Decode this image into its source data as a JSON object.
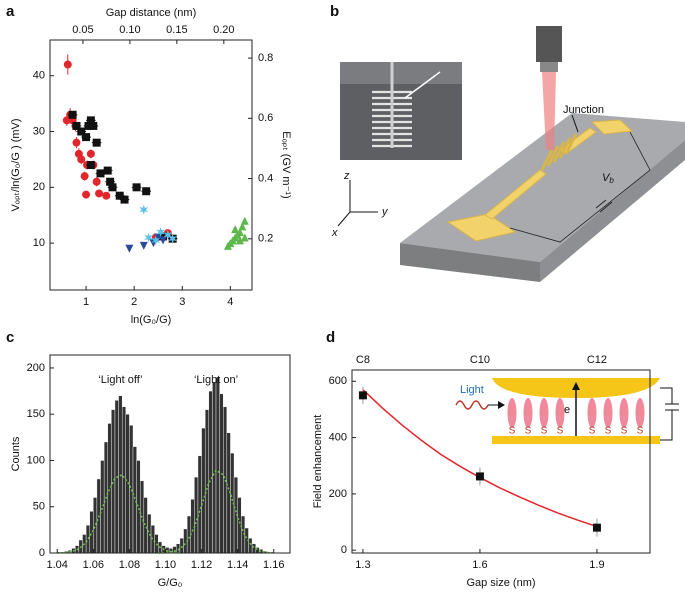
{
  "chart_data": [
    {
      "type": "scatter",
      "panel_label": "a",
      "xlabel": "ln(G₀/G)",
      "ylabel": "Vₒₚₜ/ln(G₀/G ) (mV)",
      "x2label": "Gap distance (nm)",
      "y2label": "Eₒₚₜ (GV m⁻¹)",
      "xlim": [
        0.25,
        4.45
      ],
      "xticks": [
        1,
        2,
        3,
        4
      ],
      "ylim": [
        1.6,
        46.4
      ],
      "yticks": [
        10,
        20,
        30,
        40
      ],
      "x2lim": [
        0.0149,
        0.23
      ],
      "x2ticks": [
        0.05,
        {
          "value": 0.1,
          "label": "0.10"
        },
        0.15,
        {
          "value": 0.2,
          "label": "0.20"
        }
      ],
      "y2lim": [
        0.03,
        0.86
      ],
      "y2ticks": [
        0.2,
        0.4,
        0.6,
        0.8
      ],
      "series": [
        {
          "marker": "circle",
          "color": "#e3262b",
          "x": [
            0.62,
            0.6,
            0.67,
            0.72,
            0.78,
            0.8,
            0.85,
            0.9,
            0.97,
            1.02,
            1.1,
            1.15,
            1.22,
            1.0,
            1.27,
            1.42,
            2.45,
            2.7
          ],
          "values": [
            42,
            32,
            33,
            32,
            31,
            28,
            26,
            25,
            22,
            24,
            26,
            24,
            21,
            18.7,
            18.9,
            18.5,
            11,
            11.8
          ],
          "yerr": [
            1.8,
            1,
            1.2,
            1,
            1,
            1,
            1,
            0.8,
            0.8,
            0.8,
            0.8,
            0.8,
            0.8,
            0.6,
            0.6,
            0.6,
            0.5,
            0.5
          ]
        },
        {
          "marker": "square",
          "color": "#111111",
          "x": [
            0.72,
            0.8,
            0.9,
            1.0,
            1.05,
            1.1,
            1.15,
            1.22,
            1.1,
            1.3,
            1.45,
            1.5,
            1.55,
            1.8,
            1.7,
            2.05,
            2.25,
            2.8,
            2.6
          ],
          "values": [
            33,
            31,
            30,
            29,
            31,
            32,
            31,
            28,
            24,
            22.5,
            23,
            21,
            20,
            17.8,
            18.5,
            20,
            19.3,
            10.8,
            11.2
          ],
          "xerr": [
            0.1,
            0.1,
            0.1,
            0.1,
            0.1,
            0.1,
            0.1,
            0.1,
            0.1,
            0.1,
            0.1,
            0.1,
            0.1,
            0.1,
            0.1,
            0.1,
            0.1,
            0.1,
            0.1
          ]
        },
        {
          "marker": "triangle-down",
          "color": "#2a4b9b",
          "x": [
            1.9,
            2.2,
            2.4,
            2.5,
            2.6
          ],
          "values": [
            9,
            9.5,
            10,
            11,
            10.5
          ]
        },
        {
          "marker": "star",
          "color": "#5bc0e8",
          "x": [
            2.2,
            2.3,
            2.45,
            2.55,
            2.7,
            2.8
          ],
          "values": [
            16,
            11,
            10.5,
            12,
            11.5,
            10.8
          ]
        },
        {
          "marker": "triangle-up",
          "color": "#5db84a",
          "x": [
            3.95,
            4.0,
            4.05,
            4.1,
            4.15,
            4.2,
            4.25,
            4.3,
            4.1,
            4.2,
            4.3
          ],
          "values": [
            9.5,
            10,
            10.5,
            11,
            11.5,
            12,
            13,
            14,
            12.5,
            10.5,
            11
          ]
        }
      ]
    },
    {
      "type": "histogram",
      "panel_label": "c",
      "xlabel": "G/G₀",
      "ylabel": "Counts",
      "annotations": [
        "‘Light off’",
        "‘Light on’"
      ],
      "annotation_x": [
        1.075,
        1.128
      ],
      "xlim": [
        1.036,
        1.169
      ],
      "xticks": [
        1.04,
        1.06,
        1.08,
        {
          "value": 1.1,
          "label": "1.10"
        },
        1.12,
        1.14,
        1.16
      ],
      "ylim": [
        0,
        214
      ],
      "yticks": [
        0,
        50,
        100,
        150,
        200
      ],
      "color": "#333333",
      "bins": [
        1.04,
        1.042,
        1.044,
        1.046,
        1.048,
        1.05,
        1.052,
        1.054,
        1.056,
        1.058,
        1.06,
        1.062,
        1.064,
        1.066,
        1.068,
        1.07,
        1.072,
        1.074,
        1.076,
        1.078,
        1.08,
        1.082,
        1.084,
        1.086,
        1.088,
        1.09,
        1.092,
        1.094,
        1.096,
        1.098,
        1.1,
        1.102,
        1.104,
        1.106,
        1.108,
        1.11,
        1.112,
        1.114,
        1.116,
        1.118,
        1.12,
        1.122,
        1.124,
        1.126,
        1.128,
        1.13,
        1.132,
        1.134,
        1.136,
        1.138,
        1.14,
        1.142,
        1.144,
        1.146,
        1.148,
        1.15,
        1.152,
        1.154,
        1.156,
        1.158,
        1.16
      ],
      "values": [
        1,
        1,
        2,
        3,
        5,
        8,
        14,
        20,
        30,
        45,
        60,
        80,
        100,
        120,
        140,
        155,
        165,
        170,
        158,
        150,
        138,
        115,
        100,
        78,
        60,
        42,
        30,
        20,
        12,
        8,
        6,
        5,
        7,
        10,
        16,
        26,
        40,
        58,
        82,
        105,
        135,
        155,
        175,
        185,
        190,
        172,
        158,
        130,
        108,
        82,
        60,
        40,
        27,
        16,
        10,
        6,
        4,
        2,
        1,
        1
      ],
      "curves": {
        "color": "#6cc04a",
        "x": [
          1.04,
          1.044,
          1.048,
          1.052,
          1.056,
          1.06,
          1.064,
          1.068,
          1.072,
          1.076,
          1.08,
          1.084,
          1.088,
          1.092,
          1.096,
          1.1,
          1.104,
          1.108,
          1.112,
          1.116,
          1.12,
          1.124,
          1.128,
          1.132,
          1.136,
          1.14,
          1.144,
          1.148,
          1.152,
          1.156,
          1.16
        ],
        "series": [
          {
            "values": [
              0.1,
              0.4,
              1.5,
              4.5,
              11.5,
              24.4,
              43.5,
              64.6,
              80.9,
              84.5,
              74.0,
              54.2,
              33.4,
              17.1,
              7.4,
              2.7,
              0.8,
              0.2,
              null,
              null,
              null,
              null,
              null,
              null,
              null,
              null,
              null,
              null,
              null,
              null,
              null
            ]
          },
          {
            "values": [
              null,
              null,
              null,
              null,
              null,
              null,
              null,
              null,
              null,
              null,
              null,
              null,
              null,
              null,
              0.0,
              0.3,
              1.2,
              4.3,
              12.2,
              28.0,
              51.4,
              75.7,
              89.4,
              84.6,
              64.1,
              38.8,
              18.9,
              7.4,
              2.3,
              0.6,
              0.1
            ]
          }
        ]
      }
    },
    {
      "type": "line",
      "panel_label": "d",
      "xlabel": "Gap size (nm)",
      "ylabel": "Field enhancement",
      "xlim": [
        1.272,
        2.036
      ],
      "xticks": [
        1.3,
        1.6,
        1.9
      ],
      "ylim": [
        -10,
        640
      ],
      "yticks": [
        0,
        200,
        400,
        600
      ],
      "top_labels": [
        "C8",
        "C10",
        "C12"
      ],
      "series": [
        {
          "color": "#e3262b",
          "x": [
            1.3,
            1.35,
            1.4,
            1.45,
            1.5,
            1.55,
            1.6,
            1.65,
            1.7,
            1.75,
            1.8,
            1.85,
            1.9
          ],
          "values": [
            570,
            505,
            445,
            390,
            340,
            297,
            258,
            222,
            190,
            160,
            132,
            107,
            84
          ]
        },
        {
          "marker": "square",
          "color": "#111111",
          "x": [
            1.3,
            1.6,
            1.9
          ],
          "values": [
            550,
            262,
            80
          ],
          "errors": [
            30,
            32,
            32
          ]
        }
      ],
      "inset": {
        "light": "Light",
        "electron": "e",
        "sulfur": [
          "S",
          "S",
          "S",
          "S",
          "S",
          "S",
          "S",
          "S"
        ]
      }
    }
  ],
  "diagram": {
    "panel_label": "b",
    "junction": "Junction",
    "axes": [
      "z",
      "y",
      "x"
    ],
    "bias": {
      "main": "V",
      "sub": "b"
    }
  }
}
